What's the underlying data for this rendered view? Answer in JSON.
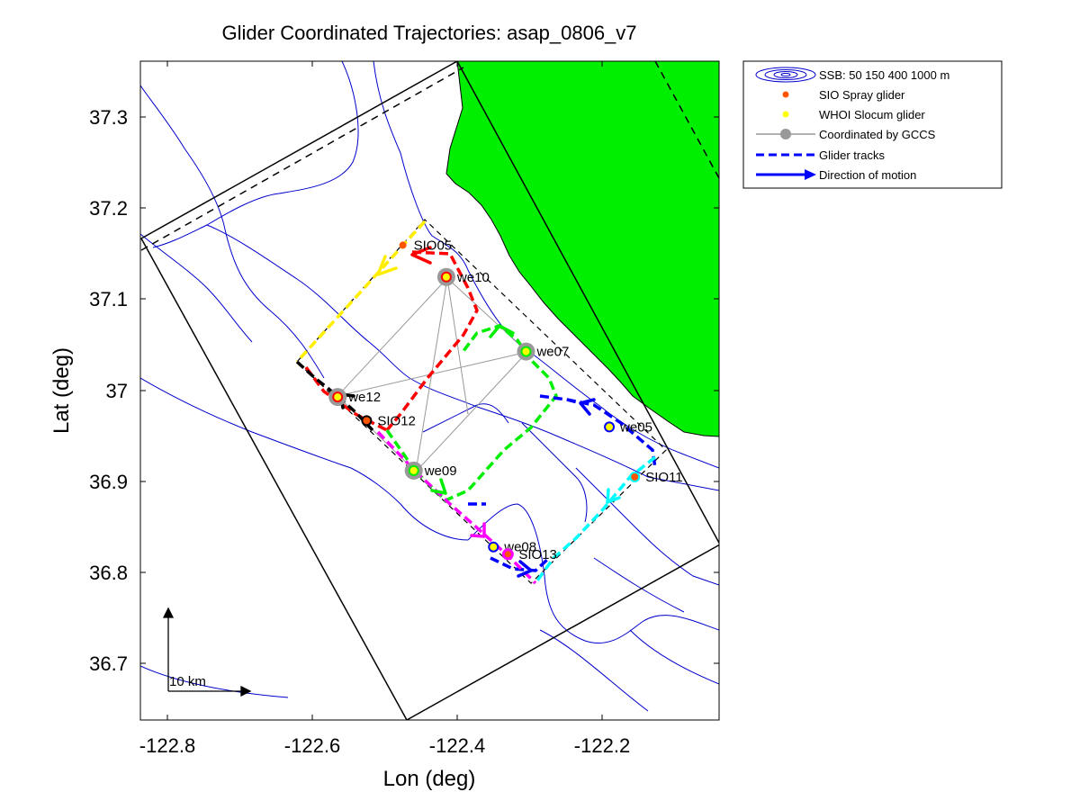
{
  "title": "Glider Coordinated Trajectories: asap_0806_v7",
  "xlabel": "Lon (deg)",
  "ylabel": "Lat (deg)",
  "x_ticks": [
    "-122.8",
    "-122.6",
    "-122.4",
    "-122.2"
  ],
  "y_ticks": [
    "37.3",
    "37.2",
    "37.1",
    "37",
    "36.9",
    "36.8",
    "36.7"
  ],
  "scale_bar_label": "10 km",
  "legend": [
    {
      "label": "SSB: 50   150   400  1000 m",
      "icon": "bathymetry-contours-icon"
    },
    {
      "label": "SIO Spray glider",
      "icon": "orange-dot-icon"
    },
    {
      "label": "WHOI Slocum glider",
      "icon": "yellow-dot-icon"
    },
    {
      "label": "Coordinated by GCCS",
      "icon": "gray-circle-line-icon"
    },
    {
      "label": "Glider tracks",
      "icon": "dashed-blue-line-icon"
    },
    {
      "label": "Direction of motion",
      "icon": "blue-arrow-icon"
    }
  ],
  "gliders": [
    {
      "name": "SIO05",
      "lon": -122.475,
      "lat": 37.16
    },
    {
      "name": "we10",
      "lon": -122.415,
      "lat": 37.125
    },
    {
      "name": "we07",
      "lon": -122.305,
      "lat": 37.043
    },
    {
      "name": "we12",
      "lon": -122.565,
      "lat": 36.993
    },
    {
      "name": "SIO12",
      "lon": -122.525,
      "lat": 36.967
    },
    {
      "name": "we05",
      "lon": -122.19,
      "lat": 36.96
    },
    {
      "name": "SIO11",
      "lon": -122.155,
      "lat": 36.905
    },
    {
      "name": "we09",
      "lon": -122.46,
      "lat": 36.912
    },
    {
      "name": "we08",
      "lon": -122.35,
      "lat": 36.828
    },
    {
      "name": "SIO13",
      "lon": -122.33,
      "lat": 36.82
    }
  ],
  "colors": {
    "land": "#00ee00",
    "bathymetry": "#0000cc",
    "spray_dot": "#ff5500",
    "slocum_dot": "#ffff00",
    "coordinated": "#999999",
    "tracks": [
      "#ffee00",
      "#ff0000",
      "#00ee00",
      "#0000ff",
      "#00ffff",
      "#ff00ff",
      "#000000"
    ]
  }
}
